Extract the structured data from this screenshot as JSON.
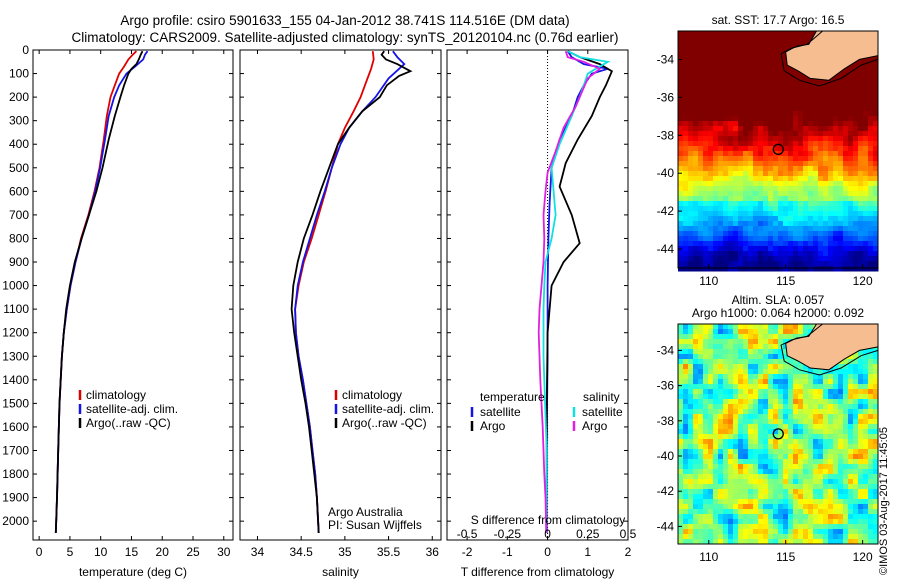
{
  "title_line1": "Argo profile: csiro 5901633_155 04-Jan-2012 38.741S 114.516E (DM data)",
  "title_line2": "Climatology: CARS2009. Satellite-adjusted climatology: synTS_20120104.nc (0.76d earlier)",
  "signature": "©IMOS 03-Aug-2017 11:45:05",
  "colors": {
    "climatology": "#e00000",
    "satellite": "#1414e6",
    "argo": "#000000",
    "sat_salinity": "#10e0e0",
    "argo_salinity": "#e020e0",
    "land": "#f6be90"
  },
  "chart_data": [
    {
      "type": "line",
      "id": "temperature",
      "xlabel": "temperature (deg C)",
      "ylabel": "",
      "xlim": [
        -1,
        31.5
      ],
      "ylim": [
        2080,
        0
      ],
      "xticks": [
        "0",
        "5",
        "10",
        "15",
        "20",
        "25",
        "30"
      ],
      "yticks": [
        "0",
        "100",
        "200",
        "300",
        "400",
        "500",
        "600",
        "700",
        "800",
        "900",
        "1000",
        "1100",
        "1200",
        "1300",
        "1400",
        "1500",
        "1600",
        "1700",
        "1800",
        "1900",
        "2000"
      ],
      "legend": [
        "climatology",
        "satellite-adj. clim.",
        "Argo(..raw -QC)"
      ],
      "series": [
        {
          "name": "climatology",
          "color": "#e00000",
          "points": [
            [
              15.8,
              5
            ],
            [
              15.2,
              20
            ],
            [
              14.5,
              40
            ],
            [
              13.8,
              70
            ],
            [
              13,
              100
            ],
            [
              12.3,
              150
            ],
            [
              11.6,
              200
            ],
            [
              11,
              280
            ],
            [
              10.5,
              380
            ],
            [
              9.8,
              500
            ],
            [
              9,
              600
            ],
            [
              8,
              700
            ],
            [
              6.8,
              800
            ],
            [
              5.9,
              900
            ],
            [
              5.1,
              1000
            ],
            [
              4.5,
              1100
            ],
            [
              4,
              1200
            ],
            [
              3.7,
              1300
            ],
            [
              3.5,
              1400
            ],
            [
              3.3,
              1500
            ],
            [
              3.1,
              1700
            ],
            [
              2.9,
              1900
            ],
            [
              2.7,
              2050
            ]
          ]
        },
        {
          "name": "satellite-adj. clim.",
          "color": "#1414e6",
          "points": [
            [
              17.6,
              5
            ],
            [
              17.2,
              20
            ],
            [
              16.9,
              40
            ],
            [
              15.6,
              70
            ],
            [
              14.2,
              100
            ],
            [
              13,
              150
            ],
            [
              12.2,
              200
            ],
            [
              11.3,
              280
            ],
            [
              10.7,
              380
            ],
            [
              9.9,
              500
            ],
            [
              9.1,
              600
            ],
            [
              8.1,
              700
            ],
            [
              6.9,
              800
            ],
            [
              5.9,
              900
            ],
            [
              5.1,
              1000
            ],
            [
              4.5,
              1100
            ],
            [
              4,
              1200
            ],
            [
              3.7,
              1300
            ],
            [
              3.5,
              1400
            ],
            [
              3.3,
              1500
            ],
            [
              3.1,
              1700
            ],
            [
              2.9,
              1900
            ],
            [
              2.7,
              2050
            ]
          ]
        },
        {
          "name": "Argo(..raw -QC)",
          "color": "#000000",
          "points": [
            [
              16.8,
              5
            ],
            [
              16.5,
              20
            ],
            [
              16.2,
              40
            ],
            [
              15.8,
              60
            ],
            [
              15,
              80
            ],
            [
              14.5,
              100
            ],
            [
              13.8,
              150
            ],
            [
              13.2,
              200
            ],
            [
              12.3,
              280
            ],
            [
              11.3,
              380
            ],
            [
              10.3,
              500
            ],
            [
              9.3,
              600
            ],
            [
              8.1,
              700
            ],
            [
              6.9,
              800
            ],
            [
              5.8,
              900
            ],
            [
              5,
              1000
            ],
            [
              4.4,
              1100
            ],
            [
              4,
              1200
            ],
            [
              3.7,
              1300
            ],
            [
              3.5,
              1400
            ],
            [
              3.3,
              1500
            ],
            [
              3.1,
              1700
            ],
            [
              2.9,
              1900
            ],
            [
              2.7,
              2050
            ]
          ]
        }
      ]
    },
    {
      "type": "line",
      "id": "salinity",
      "xlabel": "salinity",
      "xlim": [
        33.8,
        36.1
      ],
      "ylim": [
        2080,
        0
      ],
      "xticks": [
        "34",
        "34.5",
        "35",
        "35.5",
        "36"
      ],
      "legend": [
        "climatology",
        "satellite-adj. clim.",
        "Argo(..raw -QC)"
      ],
      "annotation": [
        "Argo Australia",
        "PI: Susan Wijffels"
      ],
      "series": [
        {
          "name": "climatology",
          "color": "#e00000",
          "points": [
            [
              35.32,
              5
            ],
            [
              35.33,
              40
            ],
            [
              35.3,
              80
            ],
            [
              35.25,
              130
            ],
            [
              35.18,
              200
            ],
            [
              35.1,
              260
            ],
            [
              35,
              330
            ],
            [
              34.92,
              400
            ],
            [
              34.85,
              500
            ],
            [
              34.78,
              600
            ],
            [
              34.7,
              700
            ],
            [
              34.62,
              800
            ],
            [
              34.53,
              900
            ],
            [
              34.47,
              1000
            ],
            [
              34.43,
              1100
            ],
            [
              34.44,
              1200
            ],
            [
              34.47,
              1300
            ],
            [
              34.52,
              1400
            ],
            [
              34.56,
              1500
            ],
            [
              34.6,
              1600
            ],
            [
              34.63,
              1700
            ],
            [
              34.66,
              1800
            ],
            [
              34.68,
              1900
            ],
            [
              34.7,
              2050
            ]
          ]
        },
        {
          "name": "satellite-adj. clim.",
          "color": "#1414e6",
          "points": [
            [
              35.55,
              5
            ],
            [
              35.6,
              30
            ],
            [
              35.68,
              60
            ],
            [
              35.62,
              80
            ],
            [
              35.5,
              120
            ],
            [
              35.35,
              200
            ],
            [
              35.2,
              260
            ],
            [
              35.05,
              330
            ],
            [
              34.95,
              400
            ],
            [
              34.85,
              500
            ],
            [
              34.77,
              600
            ],
            [
              34.68,
              700
            ],
            [
              34.6,
              800
            ],
            [
              34.52,
              900
            ],
            [
              34.46,
              1000
            ],
            [
              34.43,
              1100
            ],
            [
              34.44,
              1200
            ],
            [
              34.47,
              1300
            ],
            [
              34.52,
              1400
            ],
            [
              34.56,
              1500
            ],
            [
              34.6,
              1600
            ],
            [
              34.63,
              1700
            ],
            [
              34.66,
              1800
            ],
            [
              34.68,
              1900
            ],
            [
              34.7,
              2050
            ]
          ]
        },
        {
          "name": "Argo(..raw -QC)",
          "color": "#000000",
          "points": [
            [
              35.45,
              5
            ],
            [
              35.42,
              20
            ],
            [
              35.47,
              40
            ],
            [
              35.6,
              60
            ],
            [
              35.75,
              90
            ],
            [
              35.62,
              110
            ],
            [
              35.48,
              150
            ],
            [
              35.4,
              200
            ],
            [
              35.2,
              260
            ],
            [
              35.05,
              330
            ],
            [
              34.92,
              400
            ],
            [
              34.82,
              500
            ],
            [
              34.72,
              600
            ],
            [
              34.63,
              700
            ],
            [
              34.53,
              800
            ],
            [
              34.46,
              900
            ],
            [
              34.41,
              1000
            ],
            [
              34.39,
              1100
            ],
            [
              34.42,
              1200
            ],
            [
              34.46,
              1300
            ],
            [
              34.5,
              1400
            ],
            [
              34.55,
              1500
            ],
            [
              34.59,
              1600
            ],
            [
              34.62,
              1700
            ],
            [
              34.65,
              1800
            ],
            [
              34.68,
              1900
            ],
            [
              34.7,
              2050
            ]
          ]
        }
      ]
    },
    {
      "type": "line",
      "id": "difference",
      "xlabel": "T difference from climatology",
      "xlabel2": "S difference from climatology",
      "xlim": [
        -2.5,
        2
      ],
      "ylim": [
        2080,
        0
      ],
      "xticks": [
        "-2",
        "-1",
        "0",
        "1",
        "2"
      ],
      "xticks2": [
        "-0.5",
        "-0.25",
        "0",
        "0.25",
        "0.5"
      ],
      "legend_left_title": "temperature",
      "legend_right_title": "salinity",
      "legend_left": [
        "satellite",
        "Argo"
      ],
      "legend_right": [
        "satellite",
        "Argo"
      ],
      "series": [
        {
          "name": "satellite",
          "color": "#1414e6",
          "points": [
            [
              0.5,
              5
            ],
            [
              0.6,
              30
            ],
            [
              0.9,
              60
            ],
            [
              1.5,
              80
            ],
            [
              1.1,
              100
            ],
            [
              0.9,
              150
            ],
            [
              0.75,
              200
            ],
            [
              0.6,
              280
            ],
            [
              0.3,
              380
            ],
            [
              0.1,
              500
            ],
            [
              0.05,
              650
            ],
            [
              0.02,
              800
            ],
            [
              0,
              1000
            ],
            [
              0,
              1300
            ],
            [
              -0.02,
              1600
            ],
            [
              -0.02,
              2050
            ]
          ]
        },
        {
          "name": "Argo",
          "color": "#000000",
          "points": [
            [
              0.5,
              5
            ],
            [
              0.8,
              30
            ],
            [
              1.3,
              60
            ],
            [
              1.6,
              90
            ],
            [
              1.45,
              150
            ],
            [
              1.3,
              200
            ],
            [
              1.1,
              280
            ],
            [
              0.75,
              380
            ],
            [
              0.45,
              480
            ],
            [
              0.3,
              580
            ],
            [
              0.6,
              700
            ],
            [
              0.8,
              820
            ],
            [
              0.4,
              900
            ],
            [
              0.1,
              1000
            ],
            [
              0,
              1200
            ],
            [
              -0.02,
              1500
            ],
            [
              -0.02,
              1800
            ],
            [
              -0.03,
              2050
            ]
          ]
        },
        {
          "name": "satellite",
          "color": "#10e0e0",
          "points": [
            [
              0.5,
              5
            ],
            [
              0.8,
              30
            ],
            [
              1.5,
              50
            ],
            [
              1.2,
              80
            ],
            [
              1,
              100
            ],
            [
              0.8,
              200
            ],
            [
              0.55,
              300
            ],
            [
              0.3,
              400
            ],
            [
              0.1,
              500
            ],
            [
              0.15,
              600
            ],
            [
              0.2,
              700
            ],
            [
              0.1,
              800
            ],
            [
              -0.05,
              900
            ],
            [
              -0.08,
              1000
            ],
            [
              -0.1,
              1100
            ],
            [
              -0.1,
              1300
            ],
            [
              -0.06,
              1500
            ],
            [
              -0.02,
              1700
            ],
            [
              -0.03,
              2050
            ]
          ]
        },
        {
          "name": "Argo",
          "color": "#e020e0",
          "points": [
            [
              0.45,
              5
            ],
            [
              0.5,
              30
            ],
            [
              0.9,
              50
            ],
            [
              1.3,
              80
            ],
            [
              1,
              120
            ],
            [
              0.7,
              240
            ],
            [
              0.4,
              330
            ],
            [
              0.3,
              380
            ],
            [
              0.2,
              430
            ],
            [
              0,
              520
            ],
            [
              -0.05,
              600
            ],
            [
              -0.1,
              700
            ],
            [
              -0.08,
              800
            ],
            [
              -0.1,
              900
            ],
            [
              -0.15,
              1000
            ],
            [
              -0.2,
              1100
            ],
            [
              -0.22,
              1200
            ],
            [
              -0.2,
              1300
            ],
            [
              -0.18,
              1400
            ],
            [
              -0.15,
              1500
            ],
            [
              -0.12,
              1600
            ],
            [
              -0.1,
              1700
            ],
            [
              -0.08,
              1800
            ],
            [
              -0.05,
              1900
            ],
            [
              -0.03,
              2050
            ]
          ]
        }
      ]
    },
    {
      "type": "heatmap",
      "id": "sst_map",
      "title": "sat. SST: 17.7 Argo: 16.5",
      "xlim": [
        108,
        121
      ],
      "ylim": [
        -45,
        -32.5
      ],
      "xticks": [
        "110",
        "115",
        "120"
      ],
      "yticks": [
        "-34",
        "-36",
        "-38",
        "-40",
        "-42",
        "-44"
      ],
      "marker": {
        "lon": 114.516,
        "lat": -38.741
      }
    },
    {
      "type": "heatmap",
      "id": "sla_map",
      "title_line1": "Altim. SLA: 0.057",
      "title_line2": "Argo h1000: 0.064 h2000: 0.092",
      "xlim": [
        108,
        121
      ],
      "ylim": [
        -45,
        -32.5
      ],
      "xticks": [
        "110",
        "115",
        "120"
      ],
      "yticks": [
        "-34",
        "-36",
        "-38",
        "-40",
        "-42",
        "-44"
      ],
      "marker": {
        "lon": 114.516,
        "lat": -38.741
      }
    }
  ]
}
